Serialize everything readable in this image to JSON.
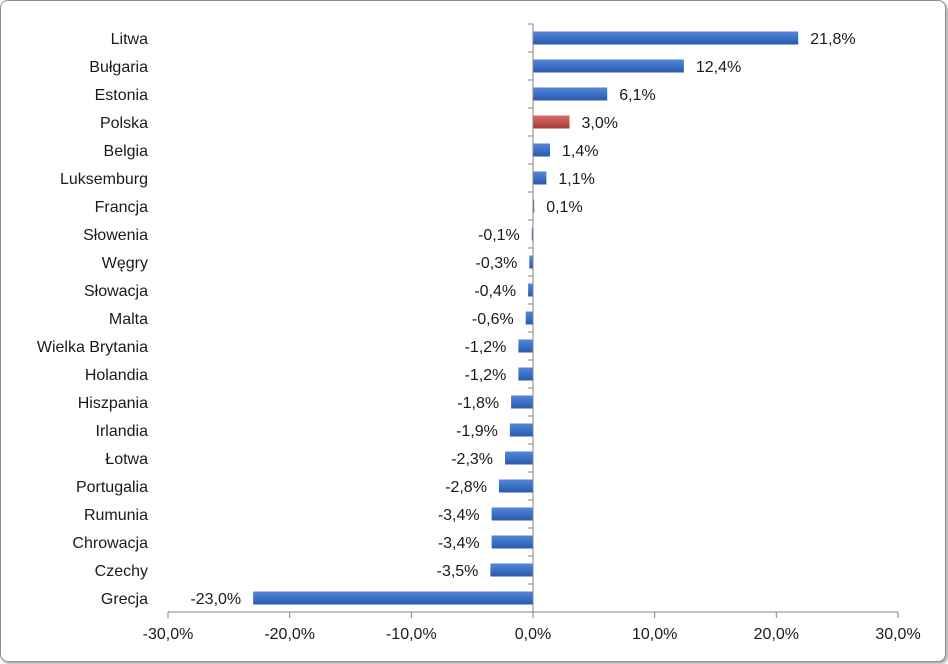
{
  "chart_data": {
    "type": "bar",
    "orientation": "horizontal",
    "categories": [
      "Litwa",
      "Bułgaria",
      "Estonia",
      "Polska",
      "Belgia",
      "Luksemburg",
      "Francja",
      "Słowenia",
      "Węgry",
      "Słowacja",
      "Malta",
      "Wielka Brytania",
      "Holandia",
      "Hiszpania",
      "Irlandia",
      "Łotwa",
      "Portugalia",
      "Rumunia",
      "Chrowacja",
      "Czechy",
      "Grecja"
    ],
    "values": [
      21.8,
      12.4,
      6.1,
      3.0,
      1.4,
      1.1,
      0.1,
      -0.1,
      -0.3,
      -0.4,
      -0.6,
      -1.2,
      -1.2,
      -1.8,
      -1.9,
      -2.3,
      -2.8,
      -3.4,
      -3.4,
      -3.5,
      -23.0
    ],
    "data_labels": [
      "21,8%",
      "12,4%",
      "6,1%",
      "3,0%",
      "1,4%",
      "1,1%",
      "0,1%",
      "-0,1%",
      "-0,3%",
      "-0,4%",
      "-0,6%",
      "-1,2%",
      "-1,2%",
      "-1,8%",
      "-1,9%",
      "-2,3%",
      "-2,8%",
      "-3,4%",
      "-3,4%",
      "-3,5%",
      "-23,0%"
    ],
    "highlight_category": "Polska",
    "xlim": [
      -30,
      30
    ],
    "xticks": [
      -30,
      -20,
      -10,
      0,
      10,
      20,
      30
    ],
    "xtick_labels": [
      "-30,0%",
      "-20,0%",
      "-10,0%",
      "0,0%",
      "10,0%",
      "20,0%",
      "30,0%"
    ],
    "title": "",
    "xlabel": "",
    "ylabel": "",
    "grid": false,
    "legend": "none",
    "colors": {
      "bar": "#3a6fc4",
      "highlight": "#c0504d",
      "axis": "#868686"
    }
  }
}
